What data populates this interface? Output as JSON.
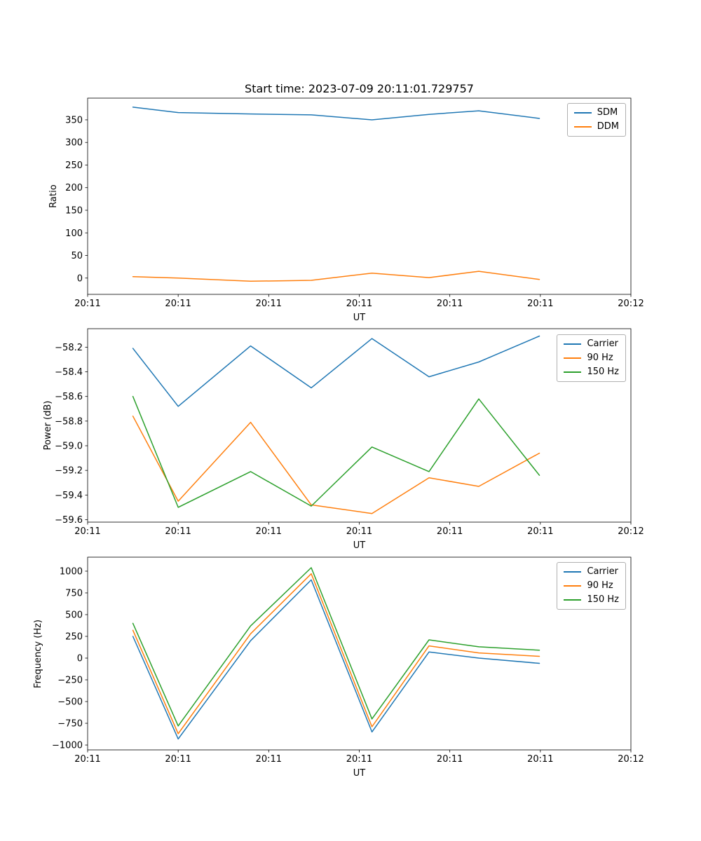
{
  "figure": {
    "background": "#ffffff",
    "title": "Start time: 2023-07-09 20:11:01.729757"
  },
  "chart_data": [
    {
      "type": "line",
      "title": "Start time: 2023-07-09 20:11:01.729757",
      "xlabel": "UT",
      "ylabel": "Ratio",
      "xlim": [
        0,
        60
      ],
      "ylim": [
        -36,
        398
      ],
      "xticks": {
        "values": [
          0,
          10,
          20,
          30,
          40,
          50,
          60
        ],
        "labels": [
          "20:11",
          "20:11",
          "20:11",
          "20:11",
          "20:11",
          "20:11",
          "20:12"
        ]
      },
      "yticks": {
        "values": [
          0,
          50,
          100,
          150,
          200,
          250,
          300,
          350
        ],
        "labels": [
          "0",
          "50",
          "100",
          "150",
          "200",
          "250",
          "300",
          "350"
        ]
      },
      "x": [
        5.0,
        10.0,
        18.0,
        24.7,
        31.4,
        37.7,
        43.2,
        49.9
      ],
      "legend_position": "upper right",
      "grid": false,
      "series": [
        {
          "name": "SDM",
          "color": "#1f77b4",
          "values": [
            378,
            366,
            363,
            361,
            350,
            362,
            370,
            353
          ]
        },
        {
          "name": "DDM",
          "color": "#ff7f0e",
          "values": [
            3,
            0,
            -7,
            -5,
            11,
            1,
            15,
            -3
          ]
        }
      ]
    },
    {
      "type": "line",
      "title": "",
      "xlabel": "UT",
      "ylabel": "Power (dB)",
      "xlim": [
        0,
        60
      ],
      "ylim": [
        -59.62,
        -58.05
      ],
      "xticks": {
        "values": [
          0,
          10,
          20,
          30,
          40,
          50,
          60
        ],
        "labels": [
          "20:11",
          "20:11",
          "20:11",
          "20:11",
          "20:11",
          "20:11",
          "20:12"
        ]
      },
      "yticks": {
        "values": [
          -59.6,
          -59.4,
          -59.2,
          -59.0,
          -58.8,
          -58.6,
          -58.4,
          -58.2
        ],
        "labels": [
          "−59.6",
          "−59.4",
          "−59.2",
          "−59.0",
          "−58.8",
          "−58.6",
          "−58.4",
          "−58.2"
        ]
      },
      "x": [
        5.0,
        10.0,
        18.0,
        24.7,
        31.4,
        37.7,
        43.2,
        49.9
      ],
      "legend_position": "upper right",
      "grid": false,
      "series": [
        {
          "name": "Carrier",
          "color": "#1f77b4",
          "values": [
            -58.21,
            -58.68,
            -58.19,
            -58.53,
            -58.13,
            -58.44,
            -58.32,
            -58.11
          ]
        },
        {
          "name": "90 Hz",
          "color": "#ff7f0e",
          "values": [
            -58.76,
            -59.45,
            -58.81,
            -59.48,
            -59.55,
            -59.26,
            -59.33,
            -59.06
          ]
        },
        {
          "name": "150 Hz",
          "color": "#2ca02c",
          "values": [
            -58.6,
            -59.5,
            -59.21,
            -59.49,
            -59.01,
            -59.21,
            -58.62,
            -59.24
          ]
        }
      ]
    },
    {
      "type": "line",
      "title": "",
      "xlabel": "UT",
      "ylabel": "Frequency (Hz)",
      "xlim": [
        0,
        60
      ],
      "ylim": [
        -1056,
        1161
      ],
      "xticks": {
        "values": [
          0,
          10,
          20,
          30,
          40,
          50,
          60
        ],
        "labels": [
          "20:11",
          "20:11",
          "20:11",
          "20:11",
          "20:11",
          "20:11",
          "20:12"
        ]
      },
      "yticks": {
        "values": [
          -1000,
          -750,
          -500,
          -250,
          0,
          250,
          500,
          750,
          1000
        ],
        "labels": [
          "−1000",
          "−750",
          "−500",
          "−250",
          "0",
          "250",
          "500",
          "750",
          "1000"
        ]
      },
      "x": [
        5.0,
        10.0,
        18.0,
        24.7,
        31.4,
        37.7,
        43.2,
        49.9
      ],
      "legend_position": "upper right",
      "grid": false,
      "series": [
        {
          "name": "Carrier",
          "color": "#1f77b4",
          "values": [
            250,
            -930,
            200,
            900,
            -850,
            70,
            0,
            -60
          ]
        },
        {
          "name": "90 Hz",
          "color": "#ff7f0e",
          "values": [
            320,
            -870,
            280,
            970,
            -790,
            140,
            60,
            20
          ]
        },
        {
          "name": "150 Hz",
          "color": "#2ca02c",
          "values": [
            400,
            -780,
            370,
            1040,
            -700,
            210,
            130,
            90
          ]
        }
      ]
    }
  ]
}
